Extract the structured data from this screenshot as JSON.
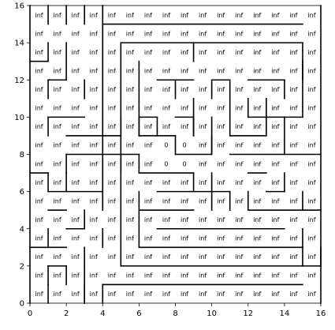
{
  "chart_data": {
    "type": "heatmap",
    "title": "",
    "xlabel": "",
    "ylabel": "",
    "xlim": [
      0,
      16
    ],
    "ylim": [
      0,
      16
    ],
    "x_ticks": [
      "0",
      "2",
      "4",
      "6",
      "8",
      "10",
      "12",
      "14",
      "16"
    ],
    "y_ticks": [
      "0",
      "2",
      "4",
      "6",
      "8",
      "10",
      "12",
      "14",
      "16"
    ],
    "grid_size": 16,
    "default_cell_label": "inf",
    "cells": [
      {
        "x": 7,
        "y": 8,
        "label": "0"
      },
      {
        "x": 8,
        "y": 8,
        "label": "0"
      },
      {
        "x": 7,
        "y": 7,
        "label": "0"
      },
      {
        "x": 8,
        "y": 7,
        "label": "0"
      }
    ],
    "walls": [
      [
        [
          1,
          0
        ],
        [
          1,
          1
        ]
      ],
      [
        [
          1,
          15
        ],
        [
          1,
          16
        ]
      ],
      [
        [
          1,
          13
        ],
        [
          1,
          14
        ]
      ],
      [
        [
          1,
          11
        ],
        [
          1,
          12
        ]
      ],
      [
        [
          1,
          10
        ],
        [
          1,
          9
        ]
      ],
      [
        [
          1,
          7
        ],
        [
          1,
          6
        ]
      ],
      [
        [
          1,
          2
        ],
        [
          1,
          1
        ]
      ],
      [
        [
          2,
          16
        ],
        [
          2,
          15
        ]
      ],
      [
        [
          2,
          14
        ],
        [
          2,
          12
        ]
      ],
      [
        [
          2,
          12
        ],
        [
          1,
          12
        ]
      ],
      [
        [
          3,
          16
        ],
        [
          3,
          15
        ]
      ],
      [
        [
          3,
          12
        ],
        [
          3,
          11
        ]
      ],
      [
        [
          3,
          0
        ],
        [
          3,
          2
        ]
      ],
      [
        [
          2,
          7
        ],
        [
          2,
          6
        ]
      ],
      [
        [
          4,
          1
        ],
        [
          4,
          0
        ]
      ],
      [
        [
          4,
          5
        ],
        [
          4,
          6
        ]
      ],
      [
        [
          5,
          7
        ],
        [
          5,
          8
        ]
      ],
      [
        [
          6,
          9
        ],
        [
          6,
          10
        ]
      ],
      [
        [
          6,
          8
        ],
        [
          6,
          7
        ]
      ],
      [
        [
          8,
          8
        ],
        [
          8,
          9
        ]
      ],
      [
        [
          9,
          9
        ],
        [
          9,
          10
        ]
      ],
      [
        [
          9,
          13
        ],
        [
          9,
          14
        ]
      ],
      [
        [
          10,
          12
        ],
        [
          10,
          11
        ]
      ],
      [
        [
          10,
          8
        ],
        [
          10,
          9
        ]
      ],
      [
        [
          12,
          6
        ],
        [
          12,
          5
        ]
      ],
      [
        [
          13,
          11
        ],
        [
          13,
          9
        ]
      ],
      [
        [
          14,
          10
        ],
        [
          14,
          8
        ]
      ],
      [
        [
          15,
          5
        ],
        [
          15,
          6
        ]
      ],
      [
        [
          14,
          7
        ],
        [
          14,
          6
        ]
      ],
      [
        [
          15,
          3
        ],
        [
          15,
          2
        ]
      ],
      [
        [
          3,
          1
        ],
        [
          3,
          0
        ]
      ],
      [
        [
          0,
          16
        ],
        [
          0,
          0
        ]
      ],
      [
        [
          16,
          0
        ],
        [
          16,
          16
        ]
      ],
      [
        [
          4,
          15
        ],
        [
          15,
          15
        ]
      ],
      [
        [
          4,
          15
        ],
        [
          4,
          16
        ]
      ],
      [
        [
          4,
          15
        ],
        [
          4,
          6
        ]
      ],
      [
        [
          4,
          6
        ],
        [
          1,
          6
        ]
      ],
      [
        [
          5,
          14
        ],
        [
          15,
          14
        ]
      ],
      [
        [
          15,
          14
        ],
        [
          15,
          12
        ]
      ],
      [
        [
          5,
          14
        ],
        [
          5,
          2
        ]
      ],
      [
        [
          5,
          2
        ],
        [
          16,
          2
        ]
      ],
      [
        [
          0,
          13
        ],
        [
          1,
          13
        ]
      ],
      [
        [
          1,
          10
        ],
        [
          3,
          10
        ]
      ],
      [
        [
          2,
          9
        ],
        [
          5,
          9
        ]
      ],
      [
        [
          5,
          9
        ],
        [
          5,
          10
        ]
      ],
      [
        [
          6,
          10
        ],
        [
          7,
          10
        ]
      ],
      [
        [
          7,
          10
        ],
        [
          7,
          9
        ]
      ],
      [
        [
          8,
          10
        ],
        [
          9,
          10
        ]
      ],
      [
        [
          7,
          12
        ],
        [
          9,
          12
        ]
      ],
      [
        [
          8,
          11
        ],
        [
          8,
          12
        ]
      ],
      [
        [
          9,
          11
        ],
        [
          9,
          9
        ]
      ],
      [
        [
          10,
          12
        ],
        [
          11,
          12
        ]
      ],
      [
        [
          11,
          12
        ],
        [
          11,
          9
        ]
      ],
      [
        [
          11,
          9
        ],
        [
          13,
          9
        ]
      ],
      [
        [
          12,
          12
        ],
        [
          14,
          12
        ]
      ],
      [
        [
          14,
          12
        ],
        [
          14,
          11
        ]
      ],
      [
        [
          12,
          11
        ],
        [
          12,
          10
        ]
      ],
      [
        [
          12,
          10
        ],
        [
          15,
          10
        ]
      ],
      [
        [
          15,
          10
        ],
        [
          15,
          13
        ]
      ],
      [
        [
          6,
          13
        ],
        [
          6,
          9
        ]
      ],
      [
        [
          6,
          9
        ],
        [
          8,
          9
        ]
      ],
      [
        [
          8,
          8
        ],
        [
          10,
          8
        ]
      ],
      [
        [
          10,
          10
        ],
        [
          10,
          8
        ]
      ],
      [
        [
          11,
          8
        ],
        [
          16,
          8
        ]
      ],
      [
        [
          2,
          8
        ],
        [
          6,
          8
        ]
      ],
      [
        [
          2,
          8
        ],
        [
          2,
          7
        ]
      ],
      [
        [
          1,
          7
        ],
        [
          0,
          7
        ]
      ],
      [
        [
          6,
          7
        ],
        [
          9,
          7
        ]
      ],
      [
        [
          9,
          7
        ],
        [
          9,
          6
        ]
      ],
      [
        [
          7,
          6
        ],
        [
          11,
          6
        ]
      ],
      [
        [
          11,
          6
        ],
        [
          11,
          5
        ]
      ],
      [
        [
          12,
          5
        ],
        [
          16,
          5
        ]
      ],
      [
        [
          13,
          6
        ],
        [
          14,
          6
        ]
      ],
      [
        [
          12,
          7
        ],
        [
          13,
          7
        ]
      ],
      [
        [
          10,
          7
        ],
        [
          10,
          5
        ]
      ],
      [
        [
          6,
          6
        ],
        [
          6,
          3
        ]
      ],
      [
        [
          6,
          3
        ],
        [
          15,
          3
        ]
      ],
      [
        [
          15,
          3
        ],
        [
          15,
          4
        ]
      ],
      [
        [
          7,
          4
        ],
        [
          14,
          4
        ]
      ],
      [
        [
          6,
          5
        ],
        [
          9,
          5
        ]
      ],
      [
        [
          1,
          4
        ],
        [
          1,
          3
        ]
      ],
      [
        [
          1,
          3
        ],
        [
          2,
          3
        ]
      ],
      [
        [
          0,
          3
        ],
        [
          1,
          3
        ]
      ],
      [
        [
          1,
          5
        ],
        [
          2,
          5
        ]
      ],
      [
        [
          2,
          4
        ],
        [
          3,
          4
        ]
      ],
      [
        [
          3,
          4
        ],
        [
          3,
          5
        ]
      ],
      [
        [
          4,
          4
        ],
        [
          4,
          3
        ]
      ],
      [
        [
          3,
          3
        ],
        [
          3,
          2
        ]
      ],
      [
        [
          4,
          1
        ],
        [
          15,
          1
        ]
      ],
      [
        [
          1,
          2
        ],
        [
          2,
          2
        ]
      ],
      [
        [
          2,
          1
        ],
        [
          2,
          2
        ]
      ],
      [
        [
          16,
          2
        ],
        [
          16,
          3
        ]
      ]
    ]
  }
}
